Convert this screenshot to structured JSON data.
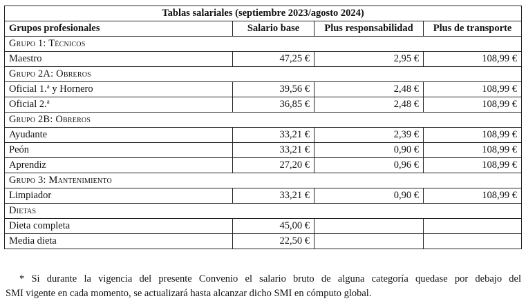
{
  "table": {
    "title": "Tablas salariales (septiembre 2023/agosto 2024)",
    "headers": [
      "Grupos profesionales",
      "Salario base",
      "Plus responsabilidad",
      "Plus de transporte"
    ],
    "sections": [
      {
        "group": "Grupo 1: Técnicos",
        "rows": [
          {
            "name": "Maestro",
            "base": "47,25 €",
            "resp": "2,95 €",
            "transp": "108,99 €"
          }
        ]
      },
      {
        "group": "Grupo 2A: Obreros",
        "rows": [
          {
            "name_pre": "Oficial 1.",
            "name_sup": "a",
            "name_post": " y Hornero",
            "base": "39,56 €",
            "resp": "2,48 €",
            "transp": "108,99 €"
          },
          {
            "name_pre": "Oficial 2.",
            "name_sup": "a",
            "name_post": "",
            "base": "36,85 €",
            "resp": "2,48 €",
            "transp": "108,99 €"
          }
        ]
      },
      {
        "group": "Grupo 2B: Obreros",
        "rows": [
          {
            "name": "Ayudante",
            "base": "33,21 €",
            "resp": "2,39 €",
            "transp": "108,99 €"
          },
          {
            "name": "Peón",
            "base": "33,21 €",
            "resp": "0,90 €",
            "transp": "108,99 €"
          },
          {
            "name": "Aprendiz",
            "base": "27,20 €",
            "resp": "0,96 €",
            "transp": "108,99 €"
          }
        ]
      },
      {
        "group": "Grupo 3: Mantenimiento",
        "rows": [
          {
            "name": "Limpiador",
            "base": "33,21 €",
            "resp": "0,90 €",
            "transp": "108,99 €"
          }
        ]
      },
      {
        "group": "Dietas",
        "rows": [
          {
            "name": "Dieta completa",
            "base": "45,00 €",
            "resp": "",
            "transp": ""
          },
          {
            "name": "Media dieta",
            "base": "22,50 €",
            "resp": "",
            "transp": ""
          }
        ]
      }
    ]
  },
  "note": {
    "line1": "* Si durante la vigencia del presente Convenio el salario bruto de alguna categoría quedase por debajo del",
    "line2": "SMI vigente en cada momento, se actualizará hasta alcanzar dicho SMI en cómputo global."
  }
}
